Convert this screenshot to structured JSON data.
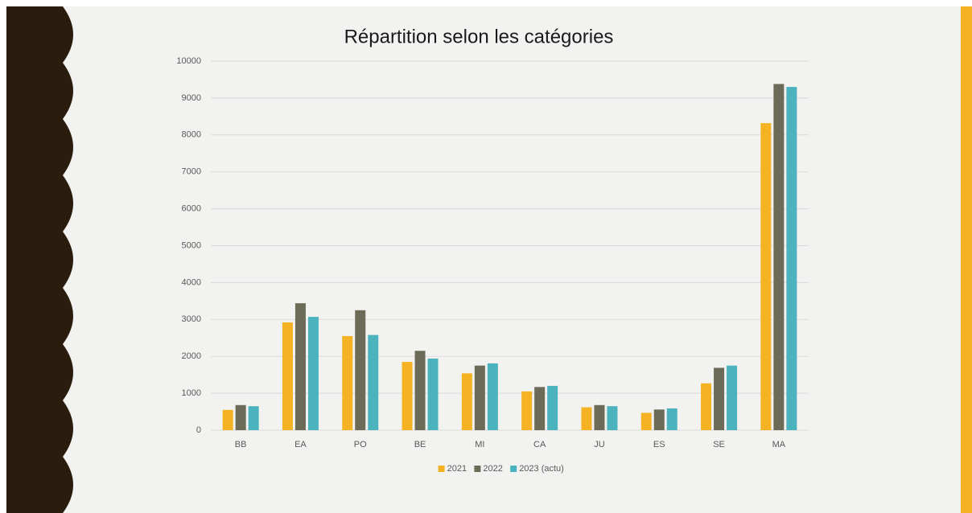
{
  "chart_data": {
    "type": "bar",
    "title": "Répartition selon les catégories",
    "categories": [
      "BB",
      "EA",
      "PO",
      "BE",
      "MI",
      "CA",
      "JU",
      "ES",
      "SE",
      "MA"
    ],
    "series": [
      {
        "name": "2021",
        "color": "#f5b324",
        "values": [
          550,
          2920,
          2550,
          1850,
          1540,
          1050,
          620,
          470,
          1270,
          8320
        ]
      },
      {
        "name": "2022",
        "color": "#6b6b58",
        "values": [
          680,
          3440,
          3250,
          2150,
          1750,
          1170,
          680,
          560,
          1690,
          9380
        ]
      },
      {
        "name": "2023 (actu)",
        "color": "#4bb3bd",
        "values": [
          650,
          3070,
          2580,
          1940,
          1810,
          1200,
          650,
          590,
          1750,
          9300
        ]
      }
    ],
    "ylim": [
      0,
      10000
    ],
    "yticks": [
      0,
      1000,
      2000,
      3000,
      4000,
      5000,
      6000,
      7000,
      8000,
      9000,
      10000
    ],
    "grid": true,
    "legend": "bottom"
  }
}
